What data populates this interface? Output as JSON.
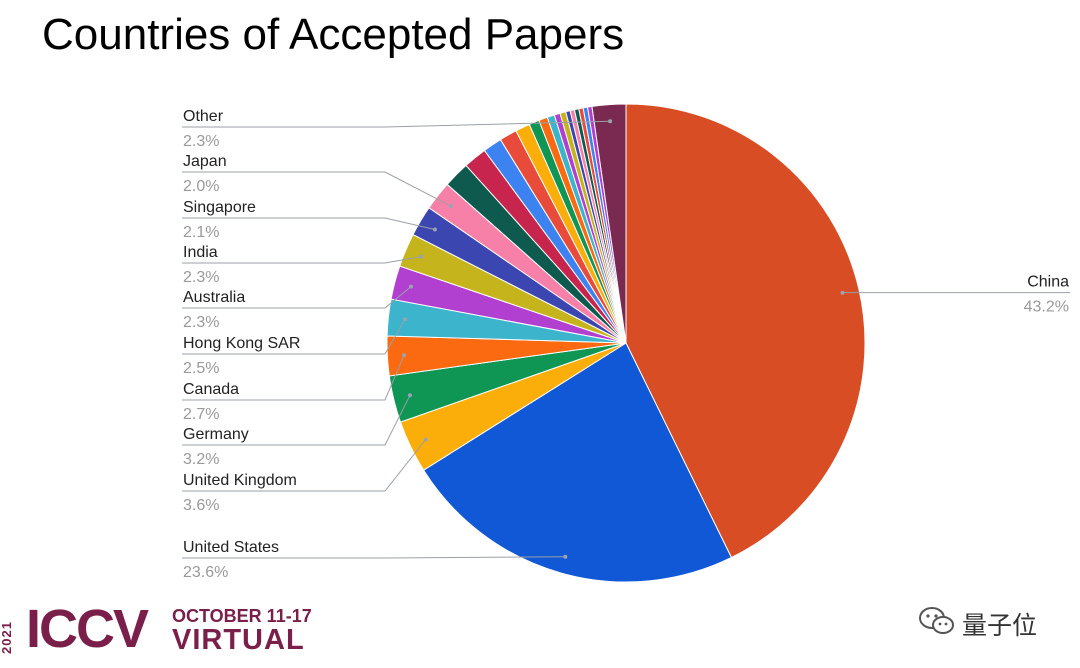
{
  "chart_data": {
    "type": "pie",
    "title": "Countries of Accepted Papers",
    "slices": [
      {
        "label": "China",
        "value": 43.2,
        "display": "43.2%",
        "color": "#d84d23",
        "labeled": true
      },
      {
        "label": "United States",
        "value": 23.6,
        "display": "23.6%",
        "color": "#1158d6",
        "labeled": true
      },
      {
        "label": "United Kingdom",
        "value": 3.6,
        "display": "3.6%",
        "color": "#fbae0a",
        "labeled": true
      },
      {
        "label": "Germany",
        "value": 3.2,
        "display": "3.2%",
        "color": "#0f9554",
        "labeled": true
      },
      {
        "label": "Canada",
        "value": 2.7,
        "display": "2.7%",
        "color": "#fb6910",
        "labeled": true
      },
      {
        "label": "Hong Kong SAR",
        "value": 2.5,
        "display": "2.5%",
        "color": "#3bb4cc",
        "labeled": true
      },
      {
        "label": "Australia",
        "value": 2.3,
        "display": "2.3%",
        "color": "#b13fd0",
        "labeled": true
      },
      {
        "label": "India",
        "value": 2.3,
        "display": "2.3%",
        "color": "#c6b41c",
        "labeled": true
      },
      {
        "label": "Singapore",
        "value": 2.1,
        "display": "2.1%",
        "color": "#3b46b1",
        "labeled": true
      },
      {
        "label": "Japan",
        "value": 2.0,
        "display": "2.0%",
        "color": "#f780a8",
        "labeled": true
      },
      {
        "value": 1.8,
        "color": "#0f5a4e",
        "labeled": false
      },
      {
        "value": 1.6,
        "color": "#c8254e",
        "labeled": false
      },
      {
        "value": 1.3,
        "color": "#3d82f1",
        "labeled": false
      },
      {
        "value": 1.2,
        "color": "#e84b3a",
        "labeled": false
      },
      {
        "value": 1.0,
        "color": "#fbae0a",
        "labeled": false
      },
      {
        "value": 0.7,
        "color": "#0f9554",
        "labeled": false
      },
      {
        "value": 0.6,
        "color": "#fb6910",
        "labeled": false
      },
      {
        "value": 0.5,
        "color": "#3bb4cc",
        "labeled": false
      },
      {
        "value": 0.4,
        "color": "#b13fd0",
        "labeled": false
      },
      {
        "value": 0.4,
        "color": "#c6b41c",
        "labeled": false
      },
      {
        "value": 0.3,
        "color": "#3b46b1",
        "labeled": false
      },
      {
        "value": 0.3,
        "color": "#f780a8",
        "labeled": false
      },
      {
        "value": 0.3,
        "color": "#0f5a4e",
        "labeled": false
      },
      {
        "value": 0.3,
        "color": "#e84b3a",
        "labeled": false
      },
      {
        "value": 0.3,
        "color": "#3d82f1",
        "labeled": false
      },
      {
        "value": 0.3,
        "color": "#b13fd0",
        "labeled": false
      },
      {
        "label": "Other",
        "value": 2.3,
        "display": "2.3%",
        "color": "#7a2a50",
        "labeled": true
      }
    ]
  },
  "footer": {
    "year": "2021",
    "logo": "ICCV",
    "dates": "OCTOBER 11-17",
    "mode": "VIRTUAL",
    "brand_color": "#7a1f4a"
  },
  "watermark": {
    "icon": "wechat-icon",
    "text": "量子位"
  }
}
